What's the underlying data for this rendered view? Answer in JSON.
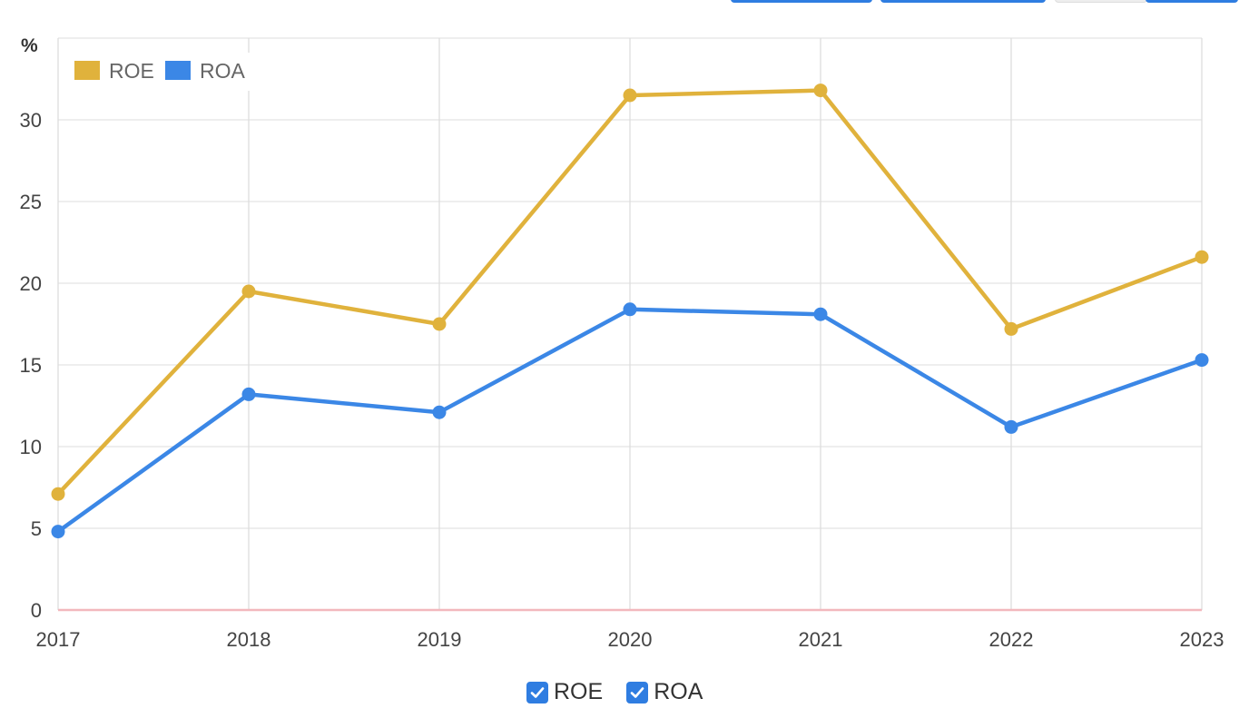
{
  "chart_data": {
    "type": "line",
    "unit_label": "%",
    "x": [
      "2017",
      "2018",
      "2019",
      "2020",
      "2021",
      "2022",
      "2023"
    ],
    "series": [
      {
        "name": "ROE",
        "color": "#e0b23c",
        "values": [
          7.1,
          19.5,
          17.5,
          31.5,
          31.8,
          17.2,
          21.6
        ]
      },
      {
        "name": "ROA",
        "color": "#3b87e6",
        "values": [
          4.8,
          13.2,
          12.1,
          18.4,
          18.1,
          11.2,
          15.3
        ]
      }
    ],
    "y_ticks": [
      "0",
      "5",
      "10",
      "15",
      "20",
      "25",
      "30"
    ],
    "ylim": [
      0,
      35
    ],
    "grid": true,
    "legend_position": "top-left",
    "zero_line_color": "#f2b8bd"
  },
  "legend_toggles": [
    {
      "label": "ROE",
      "checked": true
    },
    {
      "label": "ROA",
      "checked": true
    }
  ]
}
